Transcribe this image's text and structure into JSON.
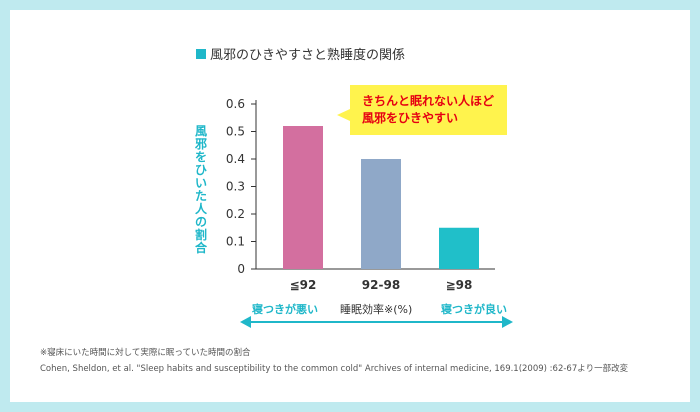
{
  "colors": {
    "accent": "#1fb7c9",
    "callout_text": "#e60012",
    "callout_bg": "#fff34d",
    "frame": "#bfeaef",
    "bars": [
      "#d36f9f",
      "#8fa8c8",
      "#20bfc9"
    ]
  },
  "chart_data": {
    "type": "bar",
    "title": "風邪のひきやすさと熟睡度の関係",
    "ylabel": "風邪をひいた人の割合",
    "xlabel": "睡眠効率※(%)",
    "categories": [
      "≦92",
      "92-98",
      "≧98"
    ],
    "values": [
      0.52,
      0.4,
      0.15
    ],
    "ylim": [
      0,
      0.6
    ],
    "yticks": [
      "0",
      "0.1",
      "0.2",
      "0.3",
      "0.4",
      "0.5",
      "0.6"
    ],
    "grid": false,
    "callout": [
      "きちんと眠れない人ほど",
      "風邪をひきやすい"
    ],
    "left_note": "寝つきが悪い",
    "right_note": "寝つきが良い"
  },
  "footnotes": {
    "definition": "※寝床にいた時間に対して実際に眠っていた時間の割合",
    "source": "Cohen, Sheldon, et al. \"Sleep habits and susceptibility to the common cold\" Archives of internal medicine, 169.1(2009) :62-67より一部改変"
  }
}
